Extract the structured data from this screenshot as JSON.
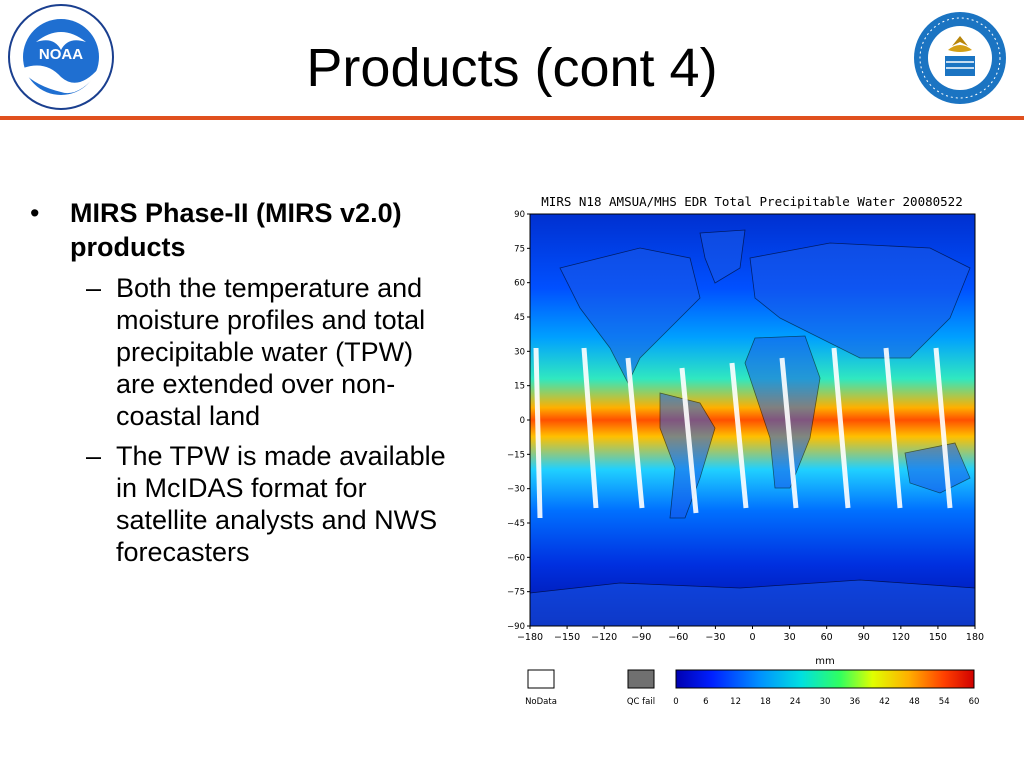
{
  "slide": {
    "title": "Products (cont 4)"
  },
  "logos": {
    "noaa_text": "NOAA",
    "noaa_ring": "NATIONAL OCEANIC AND ATMOSPHERIC ADMINISTRATION · U.S. DEPARTMENT OF COMMERCE",
    "doc_ring": "DEPARTMENT OF COMMERCE · UNITED STATES OF AMERICA"
  },
  "bullets": {
    "main": "MIRS Phase-II (MIRS v2.0) products",
    "subs": [
      "Both the temperature and moisture profiles and total precipitable water (TPW) are extended over non-coastal land",
      "The TPW is made available in McIDAS format for satellite analysts and NWS forecasters"
    ]
  },
  "chart_data": {
    "type": "heatmap",
    "title": "MIRS N18 AMSUA/MHS EDR Total Precipitable Water 20080522",
    "y_ticks": [
      "90",
      "75",
      "60",
      "45",
      "30",
      "15",
      "0",
      "−15",
      "−30",
      "−45",
      "−60",
      "−75",
      "−90"
    ],
    "x_ticks": [
      "−180",
      "−150",
      "−120",
      "−90",
      "−60",
      "−30",
      "0",
      "30",
      "60",
      "90",
      "120",
      "150",
      "180"
    ],
    "xlim": [
      -180,
      180
    ],
    "ylim": [
      -90,
      90
    ],
    "colorbar_label": "mm",
    "colorbar_ticks": [
      "0",
      "6",
      "12",
      "18",
      "24",
      "30",
      "36",
      "42",
      "48",
      "54",
      "60"
    ],
    "colorbar_range": [
      0,
      60
    ],
    "legend_nodata": "NoData",
    "legend_qcfail": "QC fail",
    "colors": {
      "nodata": "#ffffff",
      "qcfail": "#707070",
      "colorscale": [
        "#0000b0",
        "#0020ff",
        "#0090ff",
        "#00e0e0",
        "#30ff60",
        "#e0ff00",
        "#ffb000",
        "#ff4000",
        "#d00000"
      ]
    }
  }
}
